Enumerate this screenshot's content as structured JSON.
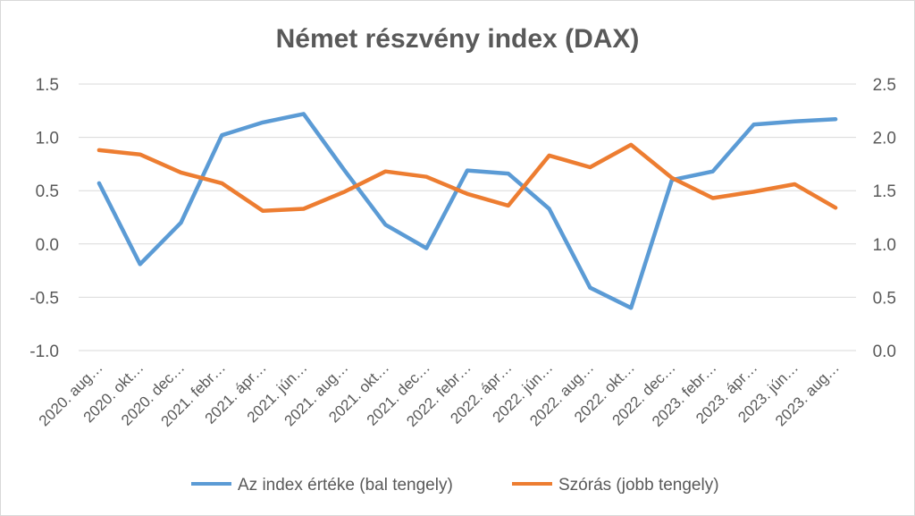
{
  "chart_data": {
    "type": "line",
    "title": "Német részvény index (DAX)",
    "categories": [
      "2020. aug…",
      "2020. okt…",
      "2020. dec…",
      "2021. febr…",
      "2021. ápr…",
      "2021. jún…",
      "2021. aug…",
      "2021. okt…",
      "2021. dec…",
      "2022. febr…",
      "2022. ápr…",
      "2022. jún…",
      "2022. aug…",
      "2022. okt…",
      "2022. dec…",
      "2023. febr…",
      "2023. ápr…",
      "2023. jún…",
      "2023. aug…"
    ],
    "series": [
      {
        "name": "Az index értéke (bal tengely)",
        "axis": "left",
        "color": "#5b9bd5",
        "values": [
          0.57,
          -0.19,
          0.2,
          1.02,
          1.14,
          1.22,
          0.69,
          0.18,
          -0.04,
          0.69,
          0.66,
          0.33,
          -0.41,
          -0.6,
          0.6,
          0.68,
          1.12,
          1.15,
          1.17
        ]
      },
      {
        "name": "Szórás (jobb tengely)",
        "axis": "right",
        "color": "#ed7d31",
        "values": [
          1.88,
          1.84,
          1.67,
          1.57,
          1.31,
          1.33,
          1.49,
          1.68,
          1.63,
          1.47,
          1.36,
          1.83,
          1.72,
          1.93,
          1.62,
          1.43,
          1.49,
          1.56,
          1.34
        ]
      }
    ],
    "y_left": {
      "ylim": [
        -1.0,
        1.5
      ],
      "ticks": [
        -1.0,
        -0.5,
        0.0,
        0.5,
        1.0,
        1.5
      ],
      "tick_labels": [
        "-1.0",
        "-0.5",
        "0.0",
        "0.5",
        "1.0",
        "1.5"
      ]
    },
    "y_right": {
      "ylim": [
        0.0,
        2.5
      ],
      "ticks": [
        0.0,
        0.5,
        1.0,
        1.5,
        2.0,
        2.5
      ],
      "tick_labels": [
        "0.0",
        "0.5",
        "1.0",
        "1.5",
        "2.0",
        "2.5"
      ]
    },
    "grid": "horizontal",
    "legend": "bottom",
    "gridline_color": "#d9d9d9",
    "text_color": "#595959"
  }
}
